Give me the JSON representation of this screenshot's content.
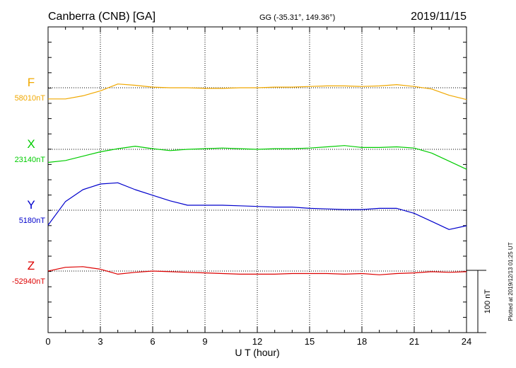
{
  "header": {
    "station": "Canberra (CNB)  [GA]",
    "coords": "GG (-35.31°, 149.36°)",
    "date": "2019/11/15"
  },
  "footer": {
    "plotted": "Plotted at 2019/12/13 01:25 UT",
    "scale_label": "100 nT"
  },
  "chart_data": {
    "type": "line",
    "title": "Canberra (CNB)  [GA]",
    "xlabel": "U T (hour)",
    "ylabel": "",
    "xlim": [
      0,
      24
    ],
    "x_ticks": [
      "0",
      "3",
      "6",
      "9",
      "12",
      "15",
      "18",
      "21",
      "24"
    ],
    "grid": true,
    "scale_bar_nT": 100,
    "series": [
      {
        "name": "F",
        "baseline_label": "58010nT",
        "baseline_nT": 58010,
        "color": "#f0a800",
        "points": [
          [
            0,
            57992
          ],
          [
            1,
            57992
          ],
          [
            2,
            57997
          ],
          [
            3,
            58005
          ],
          [
            4,
            58016
          ],
          [
            5,
            58014
          ],
          [
            6,
            58011
          ],
          [
            7,
            58010
          ],
          [
            8,
            58010
          ],
          [
            9,
            58009
          ],
          [
            10,
            58009
          ],
          [
            11,
            58010
          ],
          [
            12,
            58010
          ],
          [
            13,
            58011
          ],
          [
            14,
            58011
          ],
          [
            15,
            58012
          ],
          [
            16,
            58013
          ],
          [
            17,
            58013
          ],
          [
            18,
            58012
          ],
          [
            19,
            58013
          ],
          [
            20,
            58015
          ],
          [
            21,
            58012
          ],
          [
            22,
            58008
          ],
          [
            23,
            57998
          ],
          [
            24,
            57991
          ]
        ]
      },
      {
        "name": "X",
        "baseline_label": "23140nT",
        "baseline_nT": 23140,
        "color": "#00cc00",
        "points": [
          [
            0,
            23119
          ],
          [
            1,
            23122
          ],
          [
            2,
            23129
          ],
          [
            3,
            23136
          ],
          [
            4,
            23141
          ],
          [
            5,
            23145
          ],
          [
            6,
            23141
          ],
          [
            7,
            23138
          ],
          [
            8,
            23140
          ],
          [
            9,
            23141
          ],
          [
            10,
            23142
          ],
          [
            11,
            23141
          ],
          [
            12,
            23140
          ],
          [
            13,
            23141
          ],
          [
            14,
            23141
          ],
          [
            15,
            23142
          ],
          [
            16,
            23144
          ],
          [
            17,
            23146
          ],
          [
            18,
            23143
          ],
          [
            19,
            23143
          ],
          [
            20,
            23144
          ],
          [
            21,
            23142
          ],
          [
            22,
            23134
          ],
          [
            23,
            23121
          ],
          [
            24,
            23108
          ]
        ]
      },
      {
        "name": "Y",
        "baseline_label": "5180nT",
        "baseline_nT": 5180,
        "color": "#0000cc",
        "points": [
          [
            0,
            5156
          ],
          [
            1,
            5194
          ],
          [
            2,
            5213
          ],
          [
            3,
            5222
          ],
          [
            4,
            5224
          ],
          [
            5,
            5213
          ],
          [
            6,
            5204
          ],
          [
            7,
            5195
          ],
          [
            8,
            5188
          ],
          [
            9,
            5188
          ],
          [
            10,
            5188
          ],
          [
            11,
            5187
          ],
          [
            12,
            5186
          ],
          [
            13,
            5185
          ],
          [
            14,
            5185
          ],
          [
            15,
            5183
          ],
          [
            16,
            5182
          ],
          [
            17,
            5181
          ],
          [
            18,
            5181
          ],
          [
            19,
            5183
          ],
          [
            20,
            5183
          ],
          [
            21,
            5175
          ],
          [
            22,
            5162
          ],
          [
            23,
            5149
          ],
          [
            24,
            5155
          ]
        ]
      },
      {
        "name": "Z",
        "baseline_label": "-52940nT",
        "baseline_nT": -52940,
        "color": "#dd0000",
        "points": [
          [
            0,
            -52940
          ],
          [
            1,
            -52934
          ],
          [
            2,
            -52933
          ],
          [
            3,
            -52937
          ],
          [
            4,
            -52945
          ],
          [
            5,
            -52942
          ],
          [
            6,
            -52940
          ],
          [
            7,
            -52941
          ],
          [
            8,
            -52942
          ],
          [
            9,
            -52943
          ],
          [
            10,
            -52944
          ],
          [
            11,
            -52945
          ],
          [
            12,
            -52945
          ],
          [
            13,
            -52945
          ],
          [
            14,
            -52944
          ],
          [
            15,
            -52944
          ],
          [
            16,
            -52944
          ],
          [
            17,
            -52945
          ],
          [
            18,
            -52944
          ],
          [
            19,
            -52946
          ],
          [
            20,
            -52944
          ],
          [
            21,
            -52943
          ],
          [
            22,
            -52941
          ],
          [
            23,
            -52942
          ],
          [
            24,
            -52941
          ]
        ]
      }
    ]
  }
}
